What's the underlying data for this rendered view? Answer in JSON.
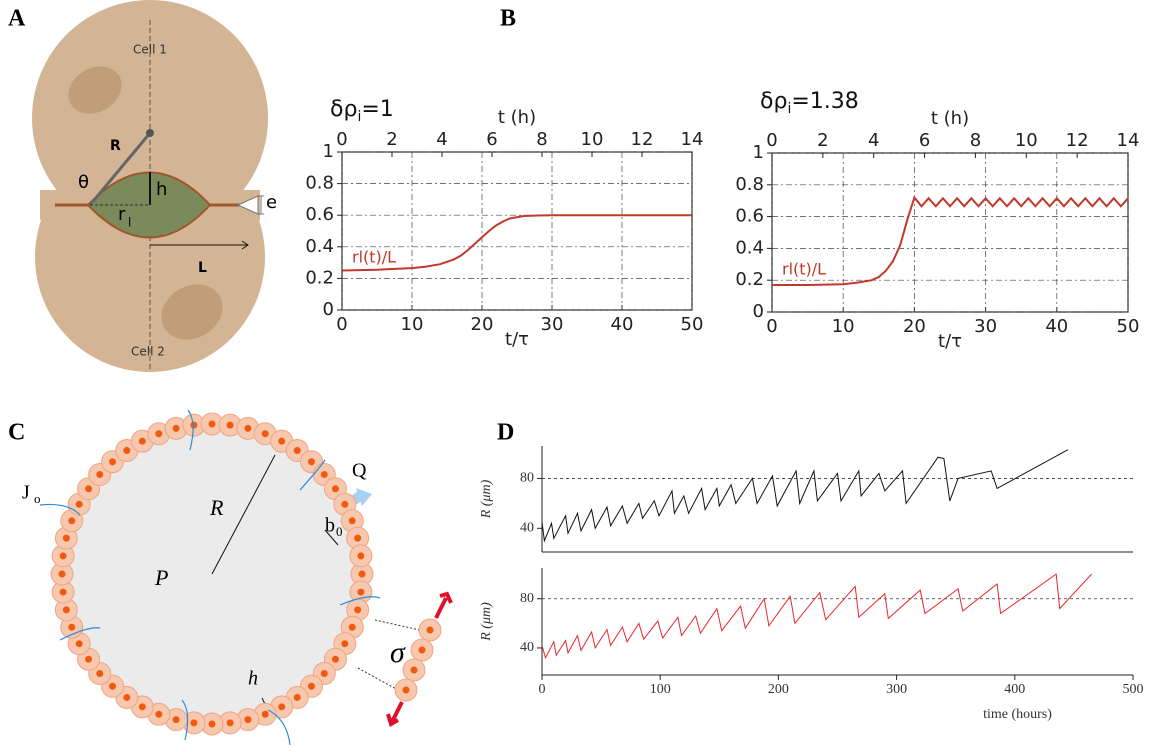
{
  "panel_labels": [
    "A",
    "B",
    "C",
    "D"
  ],
  "diagram_a": {
    "top_cell": "Cell 1",
    "bottom_cell": "Cell 2",
    "radius": "R",
    "angle": "θ",
    "height": "h",
    "lumen_radius": "r",
    "lumen_radius_sub": "l",
    "thickness": "e",
    "half_length": "L"
  },
  "diagram_c": {
    "flux": "J",
    "flux_sub": "o",
    "outflow": "Q",
    "radius": "R",
    "width": "b",
    "width_sub": "0",
    "pressure": "P",
    "thickness": "h",
    "tension": "σ"
  },
  "chart_data": [
    {
      "type": "line",
      "title": [
        "δρ",
        "i",
        "=1"
      ],
      "xlabel": "t/τ",
      "x2label": "t (h)",
      "xlim": [
        0,
        50
      ],
      "xticks": [
        0,
        10,
        20,
        30,
        40,
        50
      ],
      "x2lim": [
        0,
        14
      ],
      "x2ticks": [
        0,
        2,
        4,
        6,
        8,
        10,
        12,
        14
      ],
      "ylim": [
        0,
        1
      ],
      "yticks": [
        0,
        0.2,
        0.4,
        0.6,
        0.8,
        1
      ],
      "grid": true,
      "x": [
        0,
        5,
        10,
        12,
        14,
        16,
        17,
        18,
        19,
        20,
        21,
        22,
        23,
        24,
        26,
        28,
        30,
        40,
        50
      ],
      "series": [
        {
          "name": "rl(t)/L",
          "color": "#c0392b",
          "values": [
            0.25,
            0.255,
            0.265,
            0.275,
            0.29,
            0.32,
            0.345,
            0.38,
            0.42,
            0.46,
            0.5,
            0.535,
            0.56,
            0.58,
            0.595,
            0.598,
            0.6,
            0.6,
            0.6
          ]
        }
      ]
    },
    {
      "type": "line",
      "title": [
        "δρ",
        "i",
        "=1.38"
      ],
      "xlabel": "t/τ",
      "x2label": "t (h)",
      "xlim": [
        0,
        50
      ],
      "xticks": [
        0,
        10,
        20,
        30,
        40,
        50
      ],
      "x2lim": [
        0,
        14
      ],
      "x2ticks": [
        0,
        2,
        4,
        6,
        8,
        10,
        12,
        14
      ],
      "ylim": [
        0,
        1
      ],
      "yticks": [
        0,
        0.2,
        0.4,
        0.6,
        0.8,
        1
      ],
      "grid": true,
      "x": [
        0,
        5,
        10,
        12,
        14,
        15,
        16,
        17,
        18,
        19,
        20,
        21,
        22,
        23,
        24,
        25,
        26,
        27,
        28,
        29,
        30,
        31,
        32,
        33,
        34,
        35,
        36,
        37,
        38,
        39,
        40,
        41,
        42,
        43,
        44,
        45,
        46,
        47,
        48,
        49,
        50
      ],
      "series": [
        {
          "name": "rl(t)/L",
          "color": "#c0392b",
          "values": [
            0.17,
            0.17,
            0.175,
            0.185,
            0.2,
            0.22,
            0.26,
            0.32,
            0.42,
            0.58,
            0.72,
            0.665,
            0.715,
            0.665,
            0.715,
            0.665,
            0.715,
            0.665,
            0.715,
            0.665,
            0.715,
            0.665,
            0.715,
            0.665,
            0.715,
            0.665,
            0.715,
            0.665,
            0.715,
            0.665,
            0.715,
            0.665,
            0.715,
            0.665,
            0.715,
            0.665,
            0.715,
            0.665,
            0.715,
            0.665,
            0.715
          ]
        }
      ]
    },
    {
      "type": "line",
      "ylabel": "R (μm)",
      "xlim": [
        0,
        500
      ],
      "ylim": [
        21,
        106
      ],
      "yticks": [
        40,
        80
      ],
      "hline": 80,
      "grid": false,
      "x": [
        0,
        2,
        8,
        10,
        20,
        22,
        30,
        33,
        42,
        45,
        55,
        58,
        68,
        72,
        82,
        85,
        95,
        99,
        110,
        112,
        120,
        124,
        135,
        138,
        148,
        150,
        160,
        164,
        178,
        182,
        195,
        199,
        215,
        218,
        230,
        233,
        250,
        253,
        268,
        270,
        285,
        290,
        305,
        308,
        335,
        340,
        345,
        352,
        380,
        385,
        445
      ],
      "series": [
        {
          "color": "#111111",
          "values": [
            45,
            30,
            44,
            32,
            50,
            36,
            52,
            38,
            55,
            40,
            57,
            42,
            58,
            44,
            60,
            48,
            62,
            50,
            70,
            52,
            66,
            52,
            72,
            55,
            72,
            58,
            75,
            60,
            80,
            60,
            82,
            58,
            86,
            60,
            86,
            62,
            84,
            62,
            86,
            66,
            84,
            70,
            86,
            60,
            97,
            96,
            62,
            80,
            86,
            72,
            103
          ]
        }
      ]
    },
    {
      "type": "line",
      "ylabel": "R (μm)",
      "xlabel": "time (hours)",
      "xlim": [
        0,
        500
      ],
      "xticks": [
        0,
        100,
        200,
        300,
        400,
        500
      ],
      "ylim": [
        18,
        105
      ],
      "yticks": [
        40,
        80
      ],
      "hline": 80,
      "grid": false,
      "x": [
        0,
        3,
        10,
        12,
        20,
        22,
        30,
        33,
        42,
        45,
        55,
        58,
        68,
        72,
        82,
        86,
        98,
        102,
        115,
        118,
        130,
        134,
        148,
        152,
        168,
        172,
        188,
        192,
        210,
        214,
        235,
        240,
        265,
        268,
        290,
        293,
        320,
        324,
        352,
        356,
        385,
        388,
        435,
        438,
        465
      ],
      "series": [
        {
          "color": "#e8282b",
          "values": [
            42,
            32,
            45,
            34,
            46,
            36,
            50,
            38,
            53,
            40,
            55,
            42,
            57,
            45,
            60,
            47,
            62,
            48,
            65,
            50,
            66,
            52,
            72,
            54,
            74,
            56,
            80,
            58,
            82,
            60,
            85,
            63,
            90,
            65,
            84,
            64,
            87,
            68,
            88,
            70,
            92,
            68,
            100,
            72,
            100
          ]
        }
      ]
    }
  ]
}
